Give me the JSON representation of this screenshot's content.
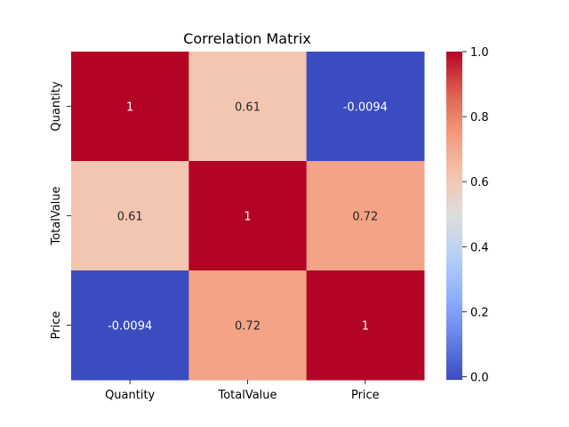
{
  "chart_data": {
    "type": "heatmap",
    "title": "Correlation Matrix",
    "rows": [
      "Quantity",
      "TotalValue",
      "Price"
    ],
    "columns": [
      "Quantity",
      "TotalValue",
      "Price"
    ],
    "values": [
      [
        1,
        0.61,
        -0.0094
      ],
      [
        0.61,
        1,
        0.72
      ],
      [
        -0.0094,
        0.72,
        1
      ]
    ],
    "cell_labels": [
      [
        "1",
        "0.61",
        "-0.0094"
      ],
      [
        "0.61",
        "1",
        "0.72"
      ],
      [
        "-0.0094",
        "0.72",
        "1"
      ]
    ],
    "colormap": "coolwarm",
    "colorbar": {
      "range": [
        -0.0094,
        1.0
      ],
      "ticks": [
        0.0,
        0.2,
        0.4,
        0.6,
        0.8,
        1.0
      ],
      "tick_labels": [
        "0.0",
        "0.2",
        "0.4",
        "0.6",
        "0.8",
        "1.0"
      ]
    },
    "grid": false
  }
}
